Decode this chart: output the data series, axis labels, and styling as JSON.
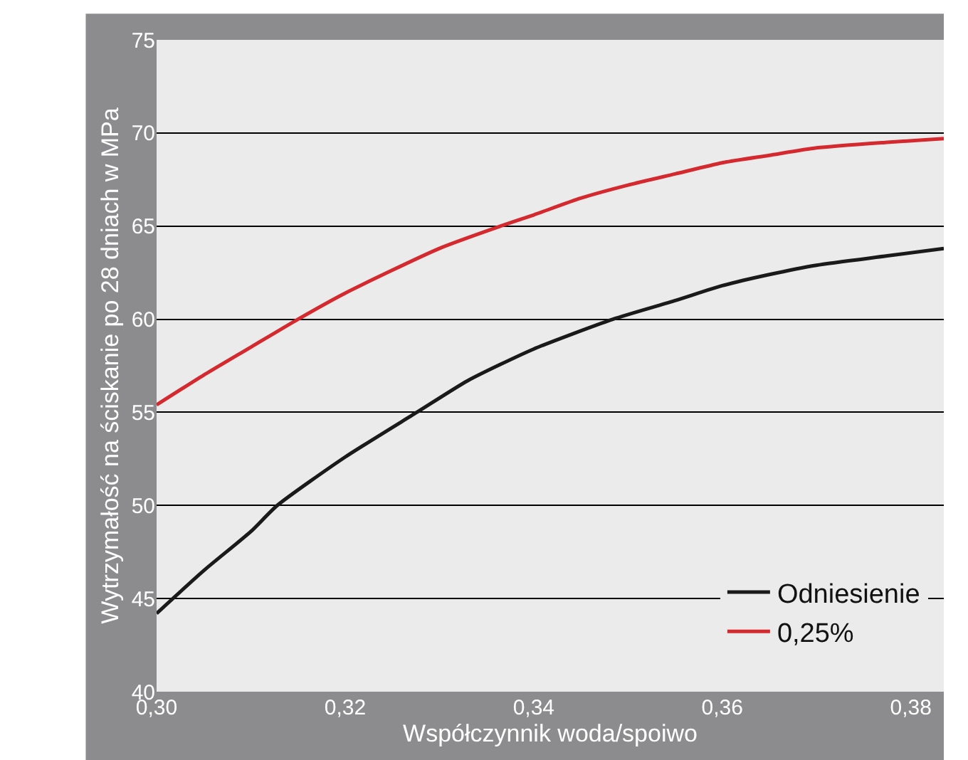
{
  "chart_data": {
    "type": "line",
    "xlabel": "Współczynnik woda/spoiwo",
    "ylabel": "Wytrzymałość na ściskanie po 28 dniach w MPa",
    "xlim": [
      0.3,
      0.3835
    ],
    "xticks": [
      {
        "value": 0.3,
        "label": "0,30"
      },
      {
        "value": 0.32,
        "label": "0,32"
      },
      {
        "value": 0.34,
        "label": "0,34"
      },
      {
        "value": 0.36,
        "label": "0,36"
      },
      {
        "value": 0.38,
        "label": "0,38"
      }
    ],
    "ylim": [
      40,
      75
    ],
    "yticks": [
      40,
      45,
      50,
      55,
      60,
      65,
      70,
      75
    ],
    "grid": "y",
    "legend": "bottom right",
    "marker": "none",
    "line_style": "solid",
    "series": [
      {
        "name": "Odniesienie",
        "color": "#1a1a1a",
        "x": [
          0.3,
          0.305,
          0.31,
          0.3128,
          0.32,
          0.3276,
          0.333,
          0.34,
          0.3484,
          0.355,
          0.36,
          0.365,
          0.37,
          0.3775,
          0.3835
        ],
        "values": [
          44.2,
          46.5,
          48.6,
          50,
          52.6,
          55,
          56.7,
          58.4,
          60,
          61,
          61.8,
          62.4,
          62.9,
          63.4,
          63.8
        ]
      },
      {
        "name": "0,25%",
        "color": "#d42a2f",
        "x": [
          0.3,
          0.305,
          0.31,
          0.315,
          0.32,
          0.33,
          0.3365,
          0.34,
          0.345,
          0.35,
          0.355,
          0.36,
          0.365,
          0.37,
          0.3775,
          0.3835
        ],
        "values": [
          55.4,
          57,
          58.5,
          60,
          61.4,
          63.8,
          65,
          65.6,
          66.5,
          67.2,
          67.8,
          68.4,
          68.8,
          69.2,
          69.5,
          69.7
        ]
      }
    ]
  }
}
